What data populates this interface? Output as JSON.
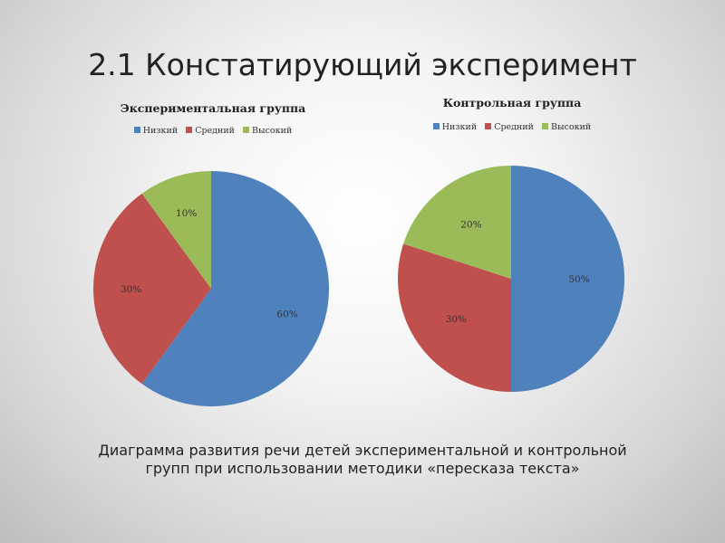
{
  "slide": {
    "title": "2.1 Констатирующий эксперимент",
    "caption_lines": [
      "Диаграмма развития речи детей экспериментальной  и контрольной",
      "групп при использовании методики «пересказа текста»"
    ]
  },
  "colors": {
    "low": "#4f81bd",
    "medium": "#c0504d",
    "high": "#9bbb59"
  },
  "chart_data": [
    {
      "type": "pie",
      "title": "Экспериментальная группа",
      "categories": [
        "Низкий",
        "Средний",
        "Высокий"
      ],
      "values": [
        60,
        30,
        10
      ],
      "labels": [
        "60%",
        "30%",
        "10%"
      ],
      "legend": "top"
    },
    {
      "type": "pie",
      "title": "Контрольная группа",
      "categories": [
        "Низкий",
        "Средний",
        "Высокий"
      ],
      "values": [
        50,
        30,
        20
      ],
      "labels": [
        "50%",
        "30%",
        "20%"
      ],
      "legend": "top"
    }
  ]
}
